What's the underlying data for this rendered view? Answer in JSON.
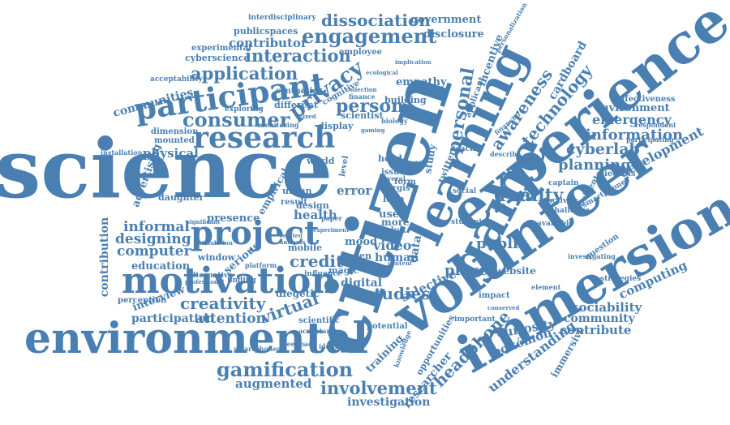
{
  "colors": {
    "word": "#4a7fb1",
    "background": "#ffffff"
  },
  "words": [
    "science",
    "citizen",
    "volunteer",
    "experience",
    "immersion",
    "learning",
    "game",
    "environmental",
    "motivation",
    "participant",
    "project",
    "research",
    "creativity",
    "gamification",
    "engagement",
    "application",
    "interaction",
    "dissociation",
    "privacy",
    "consumer",
    "person",
    "personal",
    "awareness",
    "technology",
    "information",
    "emergency",
    "environment",
    "cyberlab",
    "planning",
    "development",
    "reality",
    "player",
    "public",
    "computer",
    "informal",
    "designing",
    "education",
    "credit",
    "virtual",
    "attention",
    "participation",
    "interview",
    "perception",
    "involvement",
    "augmented",
    "investigation",
    "headphone",
    "understanding",
    "pokémon",
    "curiosity",
    "community",
    "contribute",
    "sociability",
    "computing",
    "website",
    "studies",
    "selective",
    "digital",
    "video",
    "human",
    "mood",
    "error",
    "user",
    "more",
    "health",
    "presence",
    "serious",
    "window",
    "mobile",
    "diegetic",
    "communities",
    "contributor",
    "publicspaces",
    "cyberscience",
    "experimental",
    "government",
    "disclosure",
    "incentive",
    "cardboard",
    "empathy",
    "employee",
    "acceptability",
    "advertising",
    "physical",
    "dimension",
    "mounted",
    "installation",
    "daughter",
    "contribution",
    "alternative",
    "magic",
    "open",
    "potential",
    "training",
    "researcher",
    "opportunities",
    "important",
    "immersive",
    "effectiveness",
    "smartphone",
    "diegesis",
    "captain",
    "incidental",
    "activity",
    "question",
    "strategies",
    "challenge",
    "available",
    "impact",
    "biology",
    "scientist",
    "display",
    "building",
    "finance",
    "cognitive",
    "synthetic",
    "different",
    "exploring",
    "monitoring",
    "empirical",
    "design",
    "urban",
    "result",
    "world",
    "level",
    "issue",
    "head",
    "engage",
    "form",
    "twitter",
    "social",
    "student",
    "teacher",
    "loan",
    "adult",
    "vrgis",
    "data",
    "study",
    "applicant",
    "interdisciplinary",
    "collection",
    "implication",
    "ecological",
    "personalization",
    "scientific",
    "acceptance",
    "knowledge",
    "feedback",
    "smartphones",
    "identity",
    "finding",
    "platform",
    "influence",
    "content",
    "related",
    "analysis",
    "experiment",
    "several",
    "paper",
    "significant",
    "professional",
    "simulation",
    "respondent",
    "investigating",
    "participating",
    "element",
    "conserved",
    "financial",
    "describe",
    "gaming",
    "mixed"
  ]
}
